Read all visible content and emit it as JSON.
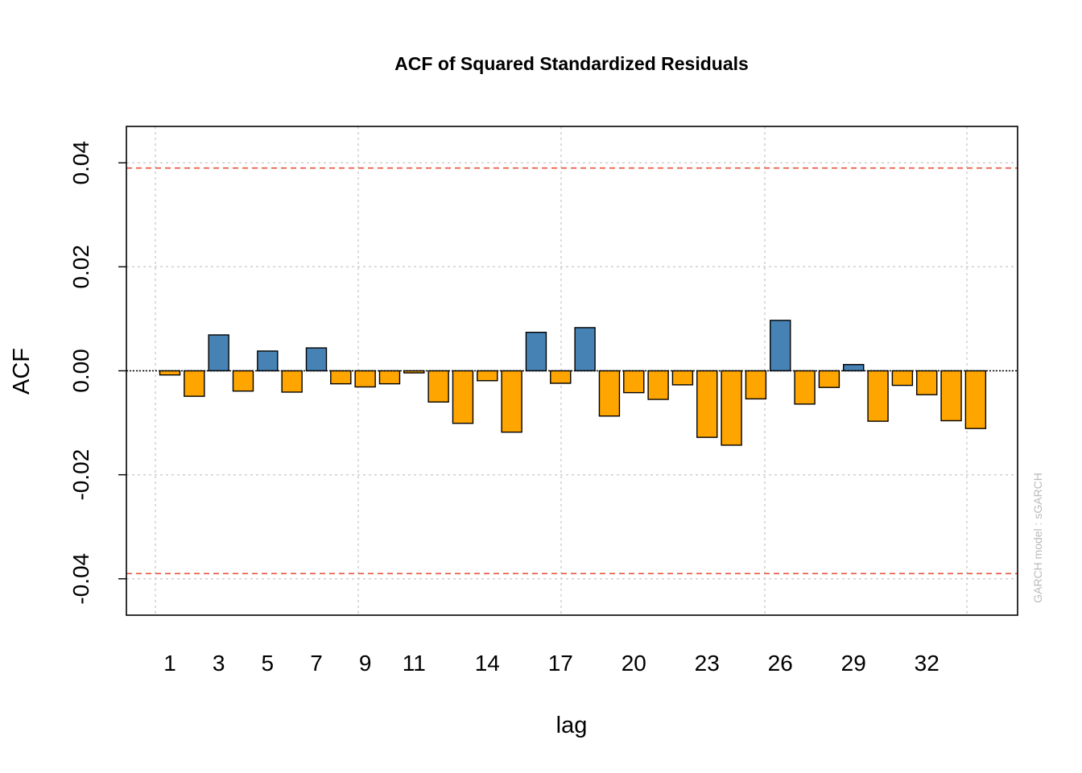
{
  "chart_data": {
    "type": "bar",
    "title": "ACF of Squared Standardized Residuals",
    "xlabel": "lag",
    "ylabel": "ACF",
    "side_note": "GARCH model : sGARCH",
    "x": [
      1,
      2,
      3,
      4,
      5,
      6,
      7,
      8,
      9,
      10,
      11,
      12,
      13,
      14,
      15,
      16,
      17,
      18,
      19,
      20,
      21,
      22,
      23,
      24,
      25,
      26,
      27,
      28,
      29,
      30,
      31,
      32,
      33,
      34
    ],
    "values": [
      -0.0008,
      -0.0049,
      0.0069,
      -0.0039,
      0.0038,
      -0.0041,
      0.0044,
      -0.0025,
      -0.0031,
      -0.0025,
      -0.0004,
      -0.006,
      -0.0101,
      -0.0019,
      -0.0118,
      0.0074,
      -0.0024,
      0.0083,
      -0.0087,
      -0.0042,
      -0.0055,
      -0.0027,
      -0.0128,
      -0.0143,
      -0.0054,
      0.0097,
      -0.0064,
      -0.0032,
      0.0012,
      -0.0097,
      -0.0028,
      -0.0046,
      -0.0096,
      -0.0111
    ],
    "x_tick_labels": [
      "1",
      "3",
      "5",
      "7",
      "9",
      "11",
      "14",
      "17",
      "20",
      "23",
      "26",
      "29",
      "32"
    ],
    "y_ticks": [
      -0.04,
      -0.02,
      0.0,
      0.02,
      0.04
    ],
    "y_tick_labels": [
      "-0.04",
      "-0.02",
      "0.00",
      "0.02",
      "0.04"
    ],
    "ylim": [
      -0.047,
      0.047
    ],
    "confidence_bound": 0.039,
    "grid": true,
    "colors": {
      "positive": "#4682B4",
      "negative": "#FFA500",
      "bound_line": "#E8553E",
      "grid": "#cccccc",
      "side_note": "#bbbbbb"
    }
  }
}
